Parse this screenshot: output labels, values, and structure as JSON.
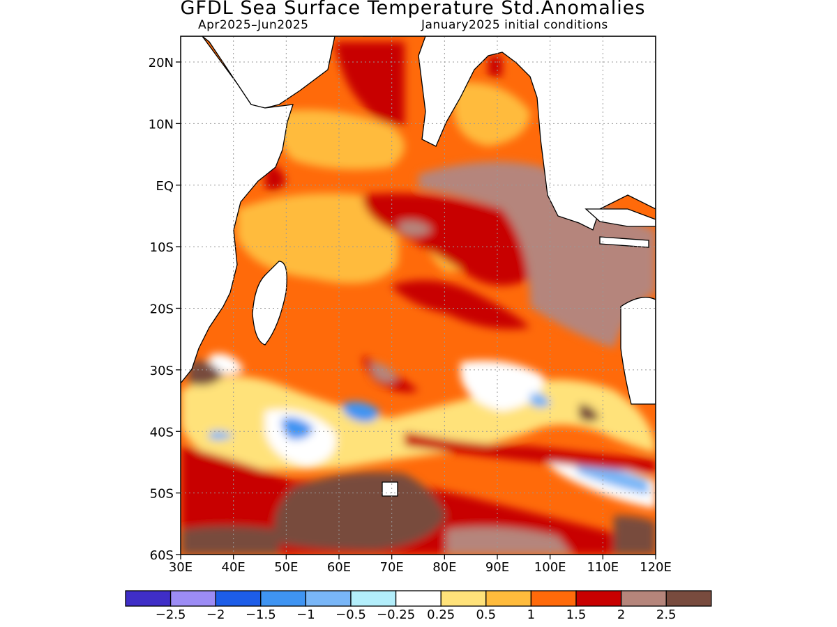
{
  "title": "GFDL Sea Surface Temperature Std.Anomalies",
  "subtitle_left": "Apr2025–Jun2025",
  "subtitle_right": "January2025 initial conditions",
  "lat_ticks": [
    "20N",
    "10N",
    "EQ",
    "10S",
    "20S",
    "30S",
    "40S",
    "50S",
    "60S"
  ],
  "lon_ticks": [
    "30E",
    "40E",
    "50E",
    "60E",
    "70E",
    "80E",
    "90E",
    "100E",
    "110E",
    "120E"
  ],
  "colorbar": {
    "colors": [
      "#3f2ec7",
      "#9c8cf5",
      "#1d5de8",
      "#3f94f2",
      "#79b6f7",
      "#b3eefb",
      "#ffffff",
      "#ffe27a",
      "#ffbb3c",
      "#ff6a0a",
      "#c80000",
      "#b5857b",
      "#784b3e"
    ],
    "labels": [
      "−2.5",
      "−2",
      "−1.5",
      "−1",
      "−0.5",
      "−0.25",
      "0.25",
      "0.5",
      "1",
      "1.5",
      "2",
      "2.5"
    ]
  }
}
